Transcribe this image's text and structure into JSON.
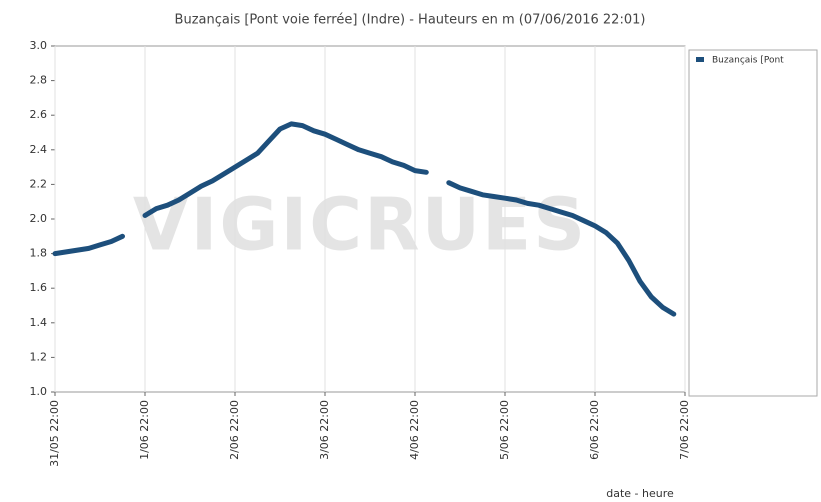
{
  "chart_data": {
    "type": "line",
    "title": "Buzançais [Pont voie ferrée] (Indre) - Hauteurs en m (07/06/2016 22:01)",
    "x_label": "date - heure",
    "annotation": "VIGICRUES",
    "x": [
      "31/05 22:00",
      "1/06 01:00",
      "1/06 04:00",
      "1/06 07:00",
      "1/06 10:00",
      "1/06 13:00",
      "1/06 16:00",
      "1/06 19:00",
      "1/06 22:00",
      "2/06 01:00",
      "2/06 04:00",
      "2/06 07:00",
      "2/06 10:00",
      "2/06 13:00",
      "2/06 16:00",
      "2/06 19:00",
      "2/06 22:00",
      "3/06 01:00",
      "3/06 04:00",
      "3/06 07:00",
      "3/06 10:00",
      "3/06 13:00",
      "3/06 16:00",
      "3/06 19:00",
      "3/06 22:00",
      "4/06 01:00",
      "4/06 04:00",
      "4/06 07:00",
      "4/06 10:00",
      "4/06 13:00",
      "4/06 16:00",
      "4/06 19:00",
      "4/06 22:00",
      "5/06 01:00",
      "5/06 04:00",
      "5/06 07:00",
      "5/06 10:00",
      "5/06 13:00",
      "5/06 16:00",
      "5/06 19:00",
      "5/06 22:00",
      "6/06 01:00",
      "6/06 04:00",
      "6/06 07:00",
      "6/06 10:00",
      "6/06 13:00",
      "6/06 16:00",
      "6/06 19:00",
      "6/06 22:00",
      "7/06 01:00",
      "7/06 04:00",
      "7/06 07:00",
      "7/06 10:00",
      "7/06 13:00",
      "7/06 16:00",
      "7/06 19:00"
    ],
    "series": [
      {
        "name": "Buzançais [Pont",
        "color": "#1d4f7c",
        "values": [
          1.8,
          1.81,
          1.82,
          1.83,
          1.85,
          1.87,
          1.9,
          null,
          2.02,
          2.06,
          2.08,
          2.11,
          2.15,
          2.19,
          2.22,
          2.26,
          2.3,
          2.34,
          2.38,
          2.45,
          2.52,
          2.55,
          2.54,
          2.51,
          2.49,
          2.46,
          2.43,
          2.4,
          2.38,
          2.36,
          2.33,
          2.31,
          2.28,
          2.27,
          null,
          2.21,
          2.18,
          2.16,
          2.14,
          2.13,
          2.12,
          2.11,
          2.09,
          2.08,
          2.06,
          2.04,
          2.02,
          1.99,
          1.96,
          1.92,
          1.86,
          1.76,
          1.64,
          1.55,
          1.49,
          1.45
        ]
      }
    ],
    "xlim": [
      "31/05 22:00",
      "7/06 22:00"
    ],
    "xticks": [
      "31/05 22:00",
      "1/06 22:00",
      "2/06 22:00",
      "3/06 22:00",
      "4/06 22:00",
      "5/06 22:00",
      "6/06 22:00",
      "7/06 22:00"
    ],
    "ylim": [
      1,
      3
    ],
    "yticks": [
      {
        "value": 1,
        "label": "1.0"
      },
      1.2,
      1.4,
      1.6,
      1.8,
      {
        "value": 2,
        "label": "2.0"
      },
      2.2,
      2.4,
      2.6,
      2.8,
      {
        "value": 3,
        "label": "3.0"
      }
    ],
    "xgrid": true,
    "ygrid": false,
    "legend": "right"
  }
}
